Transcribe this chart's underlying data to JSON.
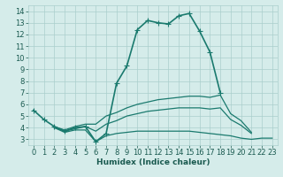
{
  "xlabel": "Humidex (Indice chaleur)",
  "x_values": [
    0,
    1,
    2,
    3,
    4,
    5,
    6,
    7,
    8,
    9,
    10,
    11,
    12,
    13,
    14,
    15,
    16,
    17,
    18,
    19,
    20,
    21,
    22,
    23
  ],
  "series": [
    {
      "name": "main_peak",
      "y": [
        5.5,
        4.7,
        4.1,
        3.7,
        4.0,
        4.1,
        2.8,
        3.5,
        7.8,
        9.3,
        12.4,
        13.2,
        13.0,
        12.9,
        13.6,
        13.8,
        12.3,
        10.5,
        7.0,
        null,
        null,
        null,
        null,
        null
      ],
      "color": "#1a7a6e",
      "linewidth": 1.2,
      "marker": "+",
      "markersize": 4
    },
    {
      "name": "upper_band",
      "y": [
        5.5,
        null,
        4.1,
        3.8,
        4.1,
        4.3,
        4.3,
        5.0,
        5.3,
        5.7,
        6.0,
        6.2,
        6.4,
        6.5,
        6.6,
        6.7,
        6.7,
        6.6,
        6.8,
        5.2,
        4.6,
        3.6,
        null,
        null
      ],
      "color": "#1a7a6e",
      "linewidth": 0.9,
      "marker": null,
      "markersize": 0
    },
    {
      "name": "mid_band",
      "y": [
        5.5,
        null,
        4.0,
        3.7,
        3.9,
        4.1,
        3.7,
        4.3,
        4.6,
        5.0,
        5.2,
        5.4,
        5.5,
        5.6,
        5.7,
        5.7,
        5.7,
        5.6,
        5.7,
        4.7,
        4.2,
        3.5,
        null,
        null
      ],
      "color": "#1a7a6e",
      "linewidth": 0.9,
      "marker": null,
      "markersize": 0
    },
    {
      "name": "lower_band",
      "y": [
        5.5,
        null,
        4.0,
        3.6,
        3.8,
        3.8,
        2.8,
        3.3,
        3.5,
        3.6,
        3.7,
        3.7,
        3.7,
        3.7,
        3.7,
        3.7,
        3.6,
        3.5,
        3.4,
        3.3,
        3.1,
        3.0,
        3.1,
        3.1
      ],
      "color": "#1a7a6e",
      "linewidth": 0.9,
      "marker": null,
      "markersize": 0
    }
  ],
  "background_color": "#d5ecea",
  "grid_color": "#aacfcc",
  "text_color": "#1a5a50",
  "xlim": [
    -0.5,
    23.5
  ],
  "ylim": [
    2.5,
    14.5
  ],
  "yticks": [
    3,
    4,
    5,
    6,
    7,
    8,
    9,
    10,
    11,
    12,
    13,
    14
  ],
  "xticks": [
    0,
    1,
    2,
    3,
    4,
    5,
    6,
    7,
    8,
    9,
    10,
    11,
    12,
    13,
    14,
    15,
    16,
    17,
    18,
    19,
    20,
    21,
    22,
    23
  ],
  "xlabel_fontsize": 6.5,
  "tick_fontsize": 6.0
}
